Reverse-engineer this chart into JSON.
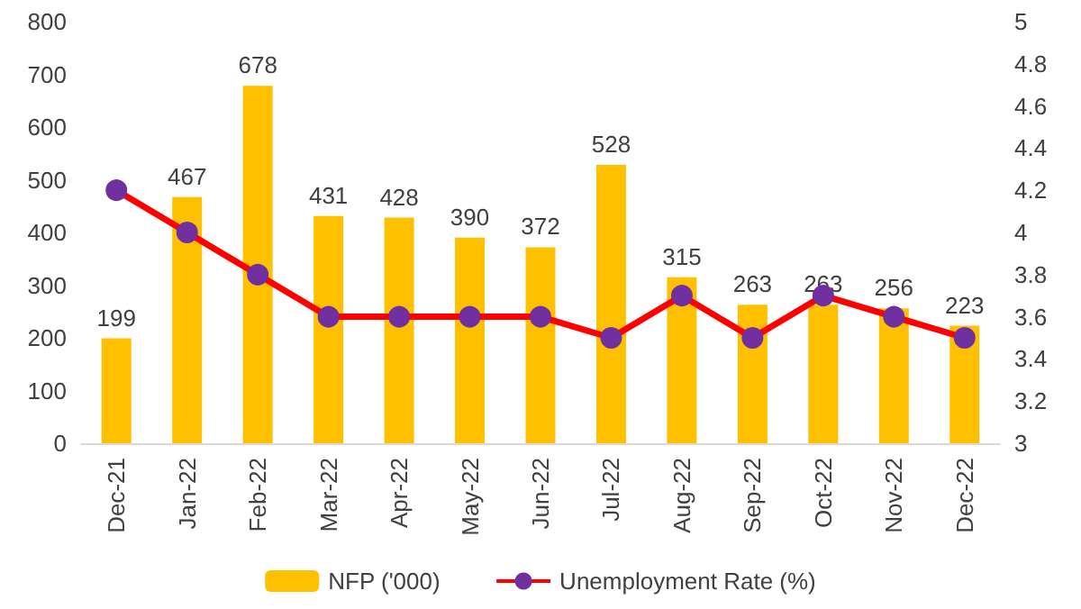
{
  "chart_data": {
    "type": "bar",
    "categories": [
      "Dec-21",
      "Jan-22",
      "Feb-22",
      "Mar-22",
      "Apr-22",
      "May-22",
      "Jun-22",
      "Jul-22",
      "Aug-22",
      "Sep-22",
      "Oct-22",
      "Nov-22",
      "Dec-22"
    ],
    "series": [
      {
        "name": "NFP ('000)",
        "color": "#ffc000",
        "values": [
          199,
          467,
          678,
          431,
          428,
          390,
          372,
          528,
          315,
          263,
          263,
          256,
          223
        ],
        "data_labels": true
      },
      {
        "name": "Unemployment Rate (%)",
        "type": "line",
        "axis": "y2",
        "color": "#ff0000",
        "marker": "circle",
        "values": [
          4.2,
          4.0,
          3.8,
          3.6,
          3.6,
          3.6,
          3.6,
          3.5,
          3.7,
          3.5,
          3.7,
          3.6,
          3.5
        ]
      }
    ],
    "ylim": [
      0,
      800
    ],
    "yticks": [
      0,
      100,
      200,
      300,
      400,
      500,
      600,
      700,
      800
    ],
    "y2lim": [
      3,
      5
    ],
    "y2ticks": [
      3,
      3.2,
      3.4,
      3.6,
      3.8,
      4,
      4.2,
      4.4,
      4.6,
      4.8,
      5
    ],
    "grid": false,
    "legend": "bottom"
  }
}
